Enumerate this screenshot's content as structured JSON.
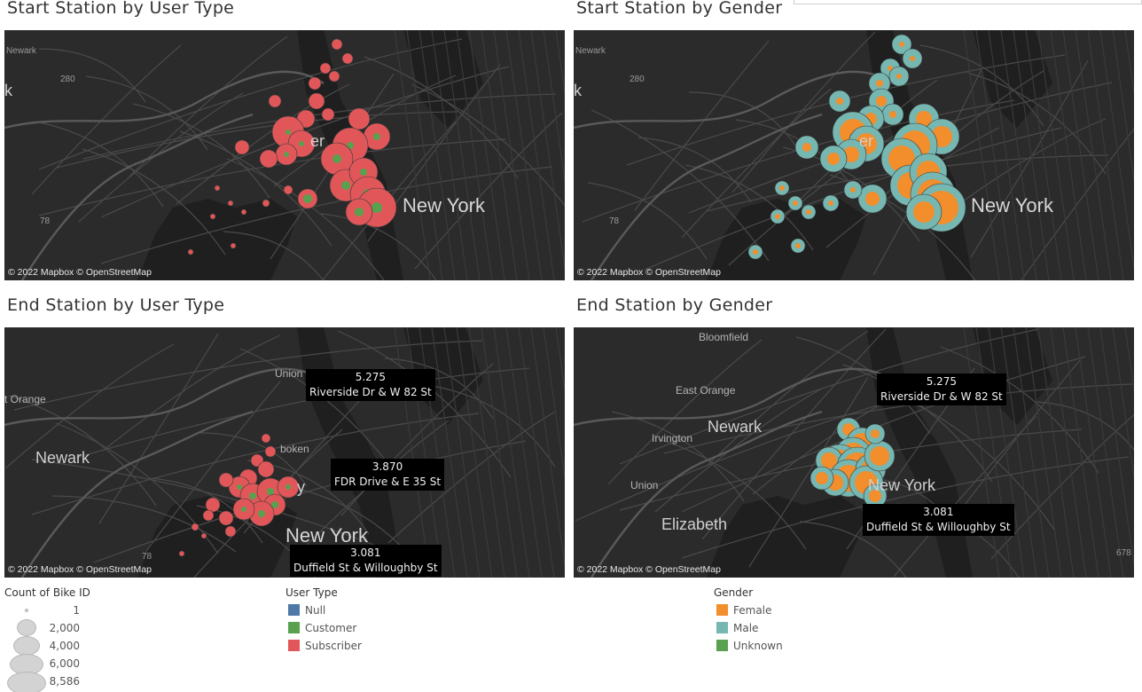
{
  "panels": {
    "start_user": {
      "title": "Start Station by User Type"
    },
    "start_gender": {
      "title": "Start Station by Gender"
    },
    "end_user": {
      "title": "End Station by User Type"
    },
    "end_gender": {
      "title": "End Station by Gender"
    }
  },
  "map": {
    "credit": "© 2022 Mapbox © OpenStreetMap",
    "labels": {
      "newark": "Newark",
      "new_york": "New York",
      "bloomfield": "Bloomfield",
      "east_orange": "East Orange",
      "irvington": "Irvington",
      "union": "Union",
      "elizabeth": "Elizabeth",
      "orange": "t Orange",
      "union_city": "Union C",
      "hoboken": "boken",
      "route_280": "280",
      "route_78": "78",
      "route_678": "678",
      "k_fragment": "k",
      "er_fragment": "er",
      "y_fragment": "y"
    }
  },
  "tooltips": {
    "riverside": {
      "value": "5.275",
      "station": "Riverside Dr & W 82 St"
    },
    "fdr": {
      "value": "3.870",
      "station": "FDR Drive & E 35 St"
    },
    "duffield": {
      "value": "3.081",
      "station": "Duffield St & Willoughby St"
    }
  },
  "legends": {
    "size": {
      "title": "Count of Bike ID",
      "items": [
        "1",
        "2,000",
        "4,000",
        "6,000",
        "8,586"
      ]
    },
    "user_type": {
      "title": "User Type",
      "items": [
        {
          "label": "Null",
          "color": "#4e79a7"
        },
        {
          "label": "Customer",
          "color": "#59a14f"
        },
        {
          "label": "Subscriber",
          "color": "#e15759"
        }
      ]
    },
    "gender": {
      "title": "Gender",
      "items": [
        {
          "label": "Female",
          "color": "#f28e2b"
        },
        {
          "label": "Male",
          "color": "#76b7b2"
        },
        {
          "label": "Unknown",
          "color": "#59a14f"
        }
      ]
    }
  },
  "colors": {
    "map_bg": "#2b2b2b",
    "water": "#1f1f1f",
    "road": "#4a4a4a",
    "subscriber": "#e15759",
    "customer": "#59a14f",
    "female": "#f28e2b",
    "male": "#76b7b2"
  }
}
